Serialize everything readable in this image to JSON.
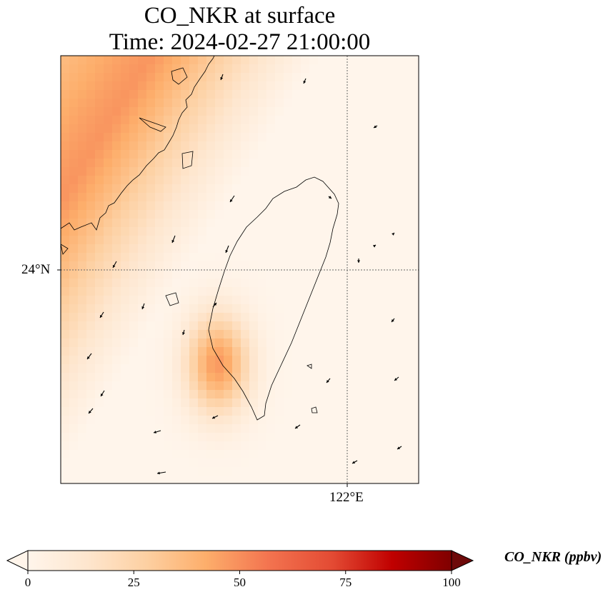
{
  "chart_data": {
    "type": "heatmap",
    "title": "CO_NKR at surface",
    "subtitle": "Time: 2024-02-27 21:00:00",
    "lat_label": "24°N",
    "lon_label": "122°E",
    "colorbar": {
      "label": "CO_NKR (ppbv)",
      "min": 0,
      "max": 100,
      "ticks": [
        "0",
        "25",
        "50",
        "75",
        "100"
      ],
      "extend": "both",
      "colormap": [
        "#fff5eb",
        "#fee6ce",
        "#fdd0a2",
        "#fdae6b",
        "#f3734f",
        "#e34a33",
        "#c00000",
        "#6e0a0a"
      ]
    },
    "field_summary": {
      "northwest_strait_max": 50,
      "southwest_coast_taiwan_max": 48,
      "taiwan_east_and_ocean": 3
    },
    "wind_vectors_present": true
  }
}
